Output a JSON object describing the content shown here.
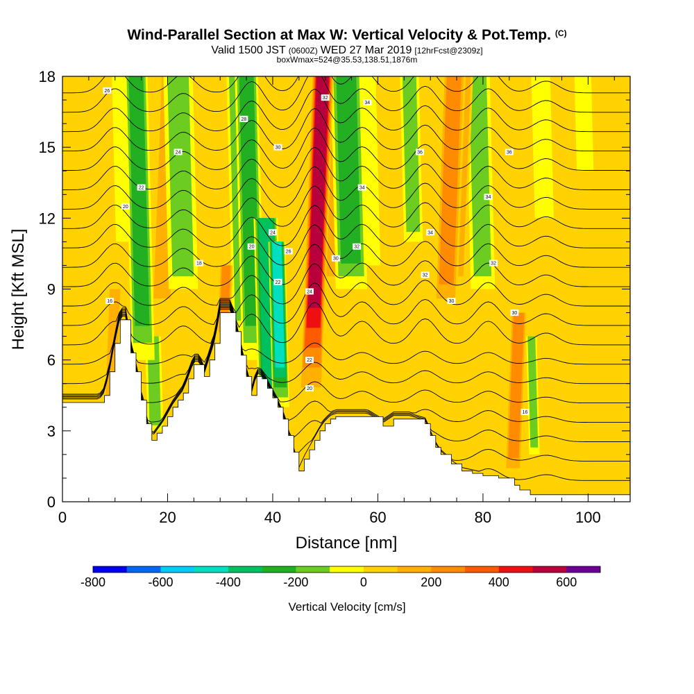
{
  "title": {
    "main": "Wind-Parallel Section at Max W: Vertical Velocity & Pot.Temp.",
    "mark": "(C)",
    "valid_a": "Valid 1500 JST",
    "valid_zulu": "(0600Z)",
    "valid_b": "WED 27 Mar 2019",
    "fcst": "[12hrFcst@2309z]",
    "box": "boxWmax=524@35.53,138.51,1876m"
  },
  "chart_data": {
    "type": "heatmap",
    "xlabel": "Distance [nm]",
    "ylabel": "Height [Kft MSL]",
    "xlim": [
      0,
      108
    ],
    "ylim": [
      0,
      18
    ],
    "xticks": [
      0,
      20,
      40,
      60,
      80,
      100
    ],
    "yticks": [
      0,
      3,
      6,
      9,
      12,
      15,
      18
    ],
    "colorbar": {
      "label": "Vertical Velocity [cm/s]",
      "ticks": [
        -800,
        -600,
        -400,
        -200,
        0,
        200,
        400,
        600
      ],
      "levels": [
        -800,
        -700,
        -600,
        -500,
        -400,
        -300,
        -200,
        -100,
        0,
        100,
        200,
        300,
        400,
        500,
        600,
        700
      ],
      "colors": [
        "#0000ee",
        "#0066f0",
        "#00ccf5",
        "#00e0c0",
        "#00c060",
        "#22b022",
        "#6ccc22",
        "#ffff00",
        "#ffd200",
        "#ffb000",
        "#ff8c00",
        "#ff5a00",
        "#ee1010",
        "#b8003c",
        "#6a0094"
      ]
    },
    "terrain": {
      "x": [
        0,
        7,
        8,
        9,
        10,
        11,
        12,
        13,
        14,
        15,
        16,
        17,
        18,
        19,
        20,
        21,
        22,
        23,
        24,
        25,
        26,
        27,
        28,
        29,
        30,
        31,
        32,
        33,
        34,
        35,
        36,
        37,
        38,
        39,
        40,
        41,
        42,
        43,
        44,
        45,
        46,
        47,
        48,
        49,
        50,
        51,
        52,
        55,
        58,
        61,
        63,
        66,
        69,
        70,
        71,
        72,
        74,
        76,
        78,
        80,
        83,
        86,
        87,
        88,
        89,
        90,
        95,
        100,
        105,
        108
      ],
      "height_kft": [
        4.2,
        4.2,
        4.5,
        5.5,
        6.7,
        7.7,
        7.7,
        6.3,
        5.5,
        4.3,
        3.3,
        2.6,
        2.9,
        3.2,
        3.6,
        4.0,
        4.3,
        4.6,
        5.2,
        5.8,
        5.8,
        5.3,
        6.0,
        6.7,
        8.0,
        8.0,
        8.0,
        7.2,
        6.2,
        5.3,
        4.5,
        5.3,
        5.2,
        4.8,
        4.4,
        4.0,
        3.5,
        2.8,
        2.1,
        1.3,
        1.8,
        2.2,
        2.6,
        3.0,
        3.3,
        3.5,
        3.6,
        3.6,
        3.6,
        3.2,
        3.5,
        3.5,
        3.3,
        2.8,
        2.3,
        2.0,
        1.6,
        1.3,
        1.2,
        1.1,
        1.0,
        0.7,
        0.5,
        0.5,
        0.3,
        0.3,
        0.3,
        0.3,
        0.3,
        0.3
      ]
    },
    "vertical_velocity_bands": [
      {
        "x": 10,
        "w_cm_s": 180,
        "width_nm": 1.4,
        "base_kft": 4,
        "top_kft": 9
      },
      {
        "x": 12,
        "w_cm_s": -90,
        "width_nm": 1.6,
        "base_kft": 11,
        "top_kft": 18
      },
      {
        "x": 15,
        "w_cm_s": -220,
        "width_nm": 2.2,
        "base_kft": 6,
        "top_kft": 18
      },
      {
        "x": 17,
        "w_cm_s": -120,
        "width_nm": 1.5,
        "base_kft": 3,
        "top_kft": 7
      },
      {
        "x": 19,
        "w_cm_s": 110,
        "width_nm": 2.2,
        "base_kft": 8,
        "top_kft": 18
      },
      {
        "x": 23,
        "w_cm_s": -110,
        "width_nm": 2.8,
        "base_kft": 9,
        "top_kft": 18
      },
      {
        "x": 31,
        "w_cm_s": 220,
        "width_nm": 1.3,
        "base_kft": 7,
        "top_kft": 10
      },
      {
        "x": 34,
        "w_cm_s": -150,
        "width_nm": 1.8,
        "base_kft": 7,
        "top_kft": 18
      },
      {
        "x": 36,
        "w_cm_s": -280,
        "width_nm": 2.2,
        "base_kft": 6,
        "top_kft": 18
      },
      {
        "x": 39,
        "w_cm_s": -380,
        "width_nm": 2.3,
        "base_kft": 3,
        "top_kft": 12
      },
      {
        "x": 41,
        "w_cm_s": -450,
        "width_nm": 1.6,
        "base_kft": 4,
        "top_kft": 11
      },
      {
        "x": 48,
        "w_cm_s": 570,
        "width_nm": 2.1,
        "base_kft": 4,
        "top_kft": 18
      },
      {
        "x": 51,
        "w_cm_s": 140,
        "width_nm": 1.7,
        "base_kft": 9,
        "top_kft": 18
      },
      {
        "x": 55,
        "w_cm_s": -210,
        "width_nm": 3.0,
        "base_kft": 9,
        "top_kft": 18
      },
      {
        "x": 59,
        "w_cm_s": -90,
        "width_nm": 1.6,
        "base_kft": 10,
        "top_kft": 18
      },
      {
        "x": 67,
        "w_cm_s": -130,
        "width_nm": 1.8,
        "base_kft": 11,
        "top_kft": 18
      },
      {
        "x": 73,
        "w_cm_s": 300,
        "width_nm": 2.2,
        "base_kft": 8,
        "top_kft": 18
      },
      {
        "x": 75,
        "w_cm_s": 200,
        "width_nm": 1.6,
        "base_kft": 9,
        "top_kft": 18
      },
      {
        "x": 80,
        "w_cm_s": -170,
        "width_nm": 2.3,
        "base_kft": 9,
        "top_kft": 18
      },
      {
        "x": 87,
        "w_cm_s": 220,
        "width_nm": 1.6,
        "base_kft": 1,
        "top_kft": 8
      },
      {
        "x": 89,
        "w_cm_s": -180,
        "width_nm": 1.0,
        "base_kft": 2,
        "top_kft": 7
      },
      {
        "x": 92,
        "w_cm_s": -100,
        "width_nm": 1.8,
        "base_kft": 12,
        "top_kft": 18
      },
      {
        "x": 100,
        "w_cm_s": -90,
        "width_nm": 1.6,
        "base_kft": 14,
        "top_kft": 18
      }
    ],
    "isentrope_labels": [
      {
        "x": 9,
        "y": 8.5,
        "text": "16"
      },
      {
        "x": 26,
        "y": 10.1,
        "text": "18"
      },
      {
        "x": 12,
        "y": 12.5,
        "text": "20"
      },
      {
        "x": 15,
        "y": 13.3,
        "text": "22"
      },
      {
        "x": 22,
        "y": 14.8,
        "text": "24"
      },
      {
        "x": 8.5,
        "y": 17.4,
        "text": "26"
      },
      {
        "x": 34.5,
        "y": 16.2,
        "text": "28"
      },
      {
        "x": 41,
        "y": 15.0,
        "text": "30"
      },
      {
        "x": 50,
        "y": 17.1,
        "text": "32"
      },
      {
        "x": 58,
        "y": 16.9,
        "text": "34"
      },
      {
        "x": 36,
        "y": 10.8,
        "text": "20"
      },
      {
        "x": 40,
        "y": 11.4,
        "text": "24"
      },
      {
        "x": 43,
        "y": 10.6,
        "text": "26"
      },
      {
        "x": 41,
        "y": 9.3,
        "text": "22"
      },
      {
        "x": 47,
        "y": 8.9,
        "text": "24"
      },
      {
        "x": 47,
        "y": 6.0,
        "text": "22"
      },
      {
        "x": 47,
        "y": 4.8,
        "text": "20"
      },
      {
        "x": 52,
        "y": 10.3,
        "text": "30"
      },
      {
        "x": 56,
        "y": 10.8,
        "text": "32"
      },
      {
        "x": 57,
        "y": 13.3,
        "text": "34"
      },
      {
        "x": 68,
        "y": 14.8,
        "text": "36"
      },
      {
        "x": 70,
        "y": 11.4,
        "text": "34"
      },
      {
        "x": 69,
        "y": 9.6,
        "text": "32"
      },
      {
        "x": 74,
        "y": 8.5,
        "text": "30"
      },
      {
        "x": 81,
        "y": 12.9,
        "text": "34"
      },
      {
        "x": 82,
        "y": 10.1,
        "text": "32"
      },
      {
        "x": 85,
        "y": 14.8,
        "text": "36"
      },
      {
        "x": 86,
        "y": 8.0,
        "text": "30"
      },
      {
        "x": 88,
        "y": 3.8,
        "text": "16"
      }
    ]
  }
}
